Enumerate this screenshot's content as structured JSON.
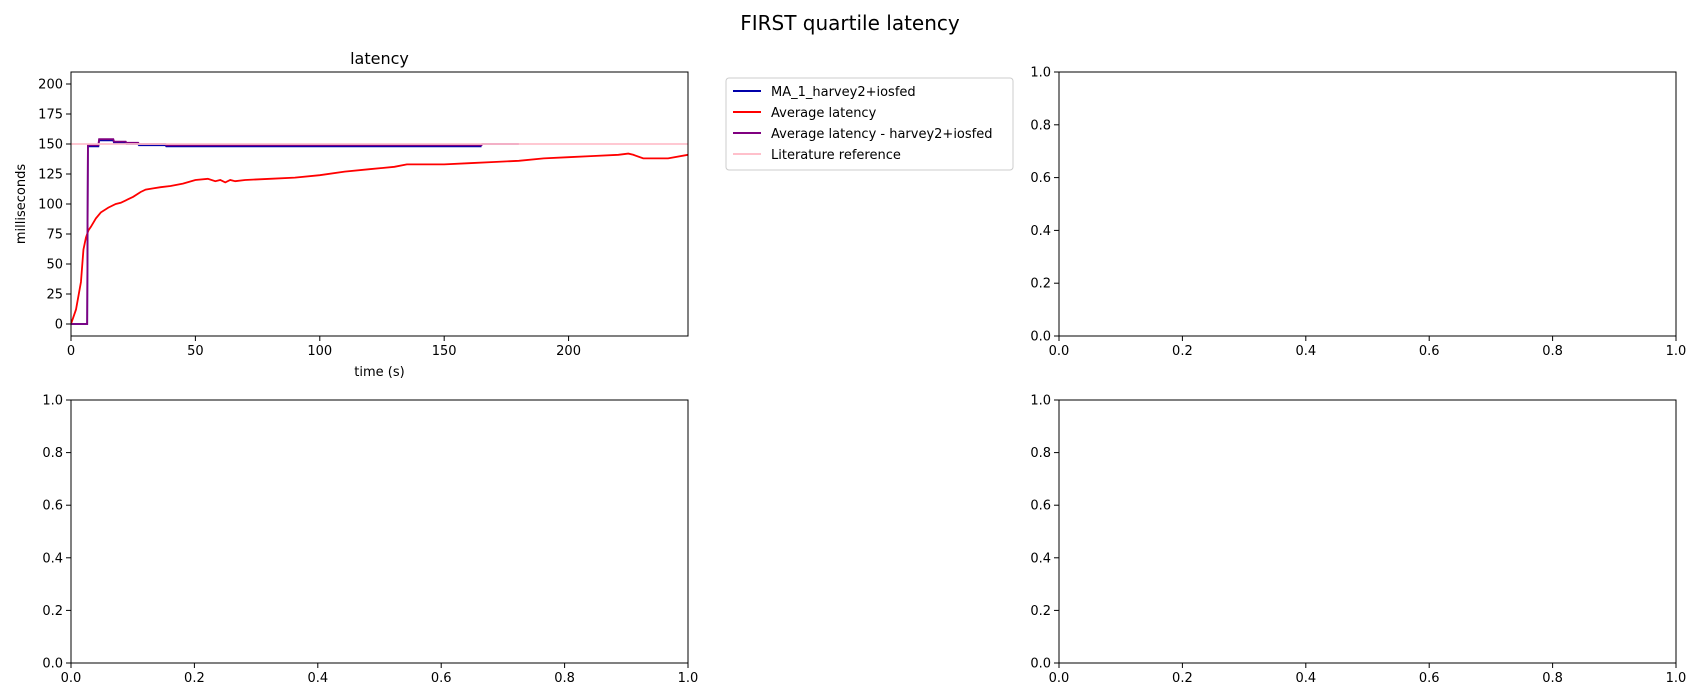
{
  "figure": {
    "title": "FIRST quartile latency"
  },
  "chart_data": [
    {
      "type": "line",
      "title": "latency",
      "xlabel": "time (s)",
      "ylabel": "milliseconds",
      "xlim": [
        0,
        248
      ],
      "ylim": [
        -10,
        210
      ],
      "xticks": [
        0,
        50,
        100,
        150,
        200
      ],
      "yticks": [
        0,
        25,
        50,
        75,
        100,
        125,
        150,
        175,
        200
      ],
      "legend_position": "outside-right",
      "series": [
        {
          "name": "MA_1_harvey2+iosfed",
          "color": "#0000aa",
          "x": [
            0,
            6.5,
            6.8,
            11,
            11.3,
            17,
            17.3,
            22,
            22.3,
            27,
            27.3,
            38,
            38.3,
            165
          ],
          "y": [
            0,
            0,
            148,
            148,
            153,
            153,
            151,
            151,
            150,
            150,
            149,
            149,
            148,
            148
          ]
        },
        {
          "name": "Average latency",
          "color": "#ff0000",
          "x": [
            0,
            2,
            4,
            5,
            6,
            7,
            8,
            10,
            12,
            15,
            18,
            20,
            22,
            25,
            28,
            30,
            33,
            36,
            40,
            45,
            50,
            55,
            58,
            60,
            62,
            64,
            66,
            70,
            80,
            90,
            100,
            110,
            120,
            130,
            135,
            140,
            150,
            160,
            170,
            180,
            190,
            200,
            210,
            220,
            224,
            226,
            230,
            240,
            248
          ],
          "y": [
            0,
            12,
            35,
            62,
            72,
            78,
            81,
            88,
            93,
            97,
            100,
            101,
            103,
            106,
            110,
            112,
            113,
            114,
            115,
            117,
            120,
            121,
            119,
            120,
            118,
            120,
            119,
            120,
            121,
            122,
            124,
            127,
            129,
            131,
            133,
            133,
            133,
            134,
            135,
            136,
            138,
            139,
            140,
            141,
            142,
            141,
            138,
            138,
            141
          ]
        },
        {
          "name": "Average latency - harvey2+iosfed",
          "color": "#800080",
          "x": [
            0,
            6.5,
            6.8,
            11,
            11.3,
            17,
            17.3,
            22,
            22.3,
            27,
            27.3,
            38,
            38.3,
            165,
            165.3,
            180
          ],
          "y": [
            0,
            0,
            149,
            149,
            154,
            154,
            152,
            152,
            151,
            151,
            150,
            150,
            149,
            149,
            150,
            150
          ]
        },
        {
          "name": "Literature reference",
          "color": "#ffc0cb",
          "x": [
            0,
            248
          ],
          "y": [
            150,
            150
          ]
        }
      ]
    },
    {
      "type": "line",
      "xlim": [
        0,
        1
      ],
      "ylim": [
        0,
        1
      ],
      "xticks": [
        "0.0",
        "0.2",
        "0.4",
        "0.6",
        "0.8",
        "1.0"
      ],
      "yticks": [
        "0.0",
        "0.2",
        "0.4",
        "0.6",
        "0.8",
        "1.0"
      ],
      "series": []
    },
    {
      "type": "line",
      "xlim": [
        0,
        1
      ],
      "ylim": [
        0,
        1
      ],
      "xticks": [
        "0.0",
        "0.2",
        "0.4",
        "0.6",
        "0.8",
        "1.0"
      ],
      "yticks": [
        "0.0",
        "0.2",
        "0.4",
        "0.6",
        "0.8",
        "1.0"
      ],
      "series": []
    },
    {
      "type": "line",
      "xlim": [
        0,
        1
      ],
      "ylim": [
        0,
        1
      ],
      "xticks": [
        "0.0",
        "0.2",
        "0.4",
        "0.6",
        "0.8",
        "1.0"
      ],
      "yticks": [
        "0.0",
        "0.2",
        "0.4",
        "0.6",
        "0.8",
        "1.0"
      ],
      "series": []
    }
  ]
}
